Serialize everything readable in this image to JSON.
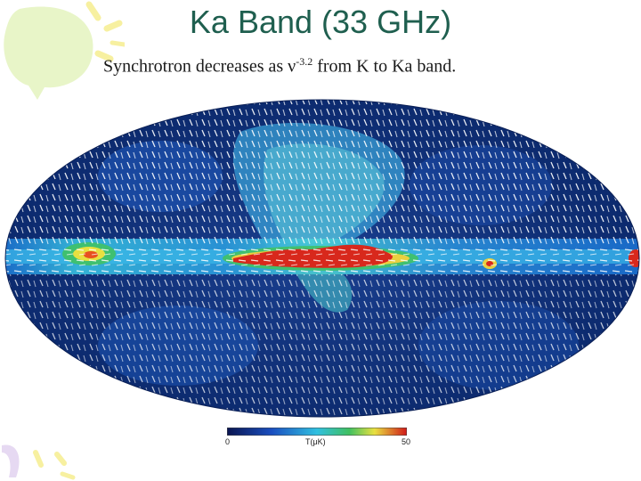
{
  "title": "Ka Band (33 GHz)",
  "subtitle": {
    "before": "Synchrotron decreases as ",
    "nu": "ν",
    "exponent": "-3.2",
    "after": " from K to Ka band."
  },
  "colorbar": {
    "min_label": "0",
    "unit_label": "T(μK)",
    "max_label": "50"
  },
  "colors": {
    "title": "#1f5f4f",
    "deco_green": "#e8f5c8",
    "deco_yellow": "#f7f0a0",
    "deco_purple": "#e6d9f2",
    "map_background": "#0f2f7a"
  }
}
